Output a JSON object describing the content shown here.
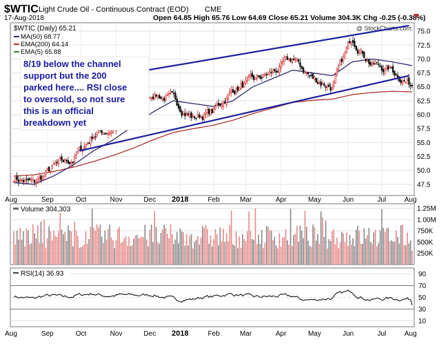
{
  "header": {
    "symbol": "$WTIC",
    "description": "Light Crude Oil - Continuous Contract (EOD)",
    "exchange": "CME",
    "date": "17-Aug-2018",
    "ohlc": "Open 64.85  High 65.76  Low 64.69  Close 65.21  Volume 304.3K  Chg -0.25 (-0.38%)",
    "watermark": "@ StockCharts.com"
  },
  "legend": {
    "main": "$WTIC (Daily) 65.21",
    "ma50": "MA(50) 68.77",
    "ema200": "EMA(200) 64.14",
    "ema5": "EMA(5) 65.88"
  },
  "annotation": {
    "lines": [
      "8/19  below the channel",
      "support but the 200",
      "parked here.... RSI close",
      "to oversold, so not sure",
      "this is an official",
      "breakdown yet"
    ]
  },
  "volume_label": "Volume 304,303",
  "rsi_label": "RSI(14) 36.93",
  "colors": {
    "up": "#d22a2a",
    "down": "#111111",
    "ma50": "#2a2a6a",
    "ema200": "#b03030",
    "ema5": "#2f8a2f",
    "channel": "#1b1fa0",
    "annotation_text": "#1a1aa0",
    "vol_up": "#e88a8a",
    "vol_down": "#8a8a8a"
  },
  "chart_data": {
    "type": "candlestick",
    "title": "$WTIC Light Crude Oil - Continuous Contract (EOD)",
    "x_months": [
      "Aug",
      "Sep",
      "Oct",
      "Nov",
      "Dec",
      "2018",
      "Feb",
      "Mar",
      "Apr",
      "May",
      "Jun",
      "Jul",
      "Aug"
    ],
    "price_ylim": [
      45.5,
      76.5
    ],
    "price_ticks": [
      "47.5",
      "50.0",
      "52.5",
      "55.0",
      "57.5",
      "60.0",
      "62.5",
      "65.0",
      "67.5",
      "70.0",
      "72.5",
      "75.0"
    ],
    "volume_ticks": [
      "250K",
      "500K",
      "750K",
      "1.00M",
      "1.25M"
    ],
    "rsi_ticks": [
      "10",
      "30",
      "50",
      "70",
      "90"
    ],
    "close_path_monthly": [
      48.8,
      47.5,
      50.5,
      52.0,
      56.5,
      57.5,
      61.0,
      64.0,
      62.5,
      59.5,
      60.5,
      64.5,
      66.0,
      67.5,
      70.0,
      66.5,
      65.0,
      74.0,
      69.0,
      68.0,
      65.2
    ],
    "channel_upper": [
      [
        63,
        67.0
      ],
      [
        247,
        76.0
      ]
    ],
    "channel_lower": [
      [
        41,
        53.5
      ],
      [
        247,
        67.0
      ]
    ],
    "ma50_path": [
      47.8,
      47.5,
      49.0,
      51.0,
      53.5,
      55.5,
      58.0,
      60.5,
      62.5,
      62.0,
      61.5,
      62.5,
      65.0,
      66.5,
      68.0,
      67.5,
      67.0,
      69.5,
      70.0,
      69.5,
      68.8
    ],
    "ema200_path": [
      49.0,
      49.2,
      49.8,
      50.6,
      51.6,
      52.7,
      54.0,
      55.5,
      56.8,
      57.5,
      58.1,
      59.0,
      60.2,
      61.2,
      62.2,
      62.6,
      62.8,
      63.6,
      64.0,
      64.2,
      64.1
    ],
    "rsi_levels": [
      30,
      70
    ],
    "rsi_last": 36.93,
    "volume_last": 304303
  }
}
